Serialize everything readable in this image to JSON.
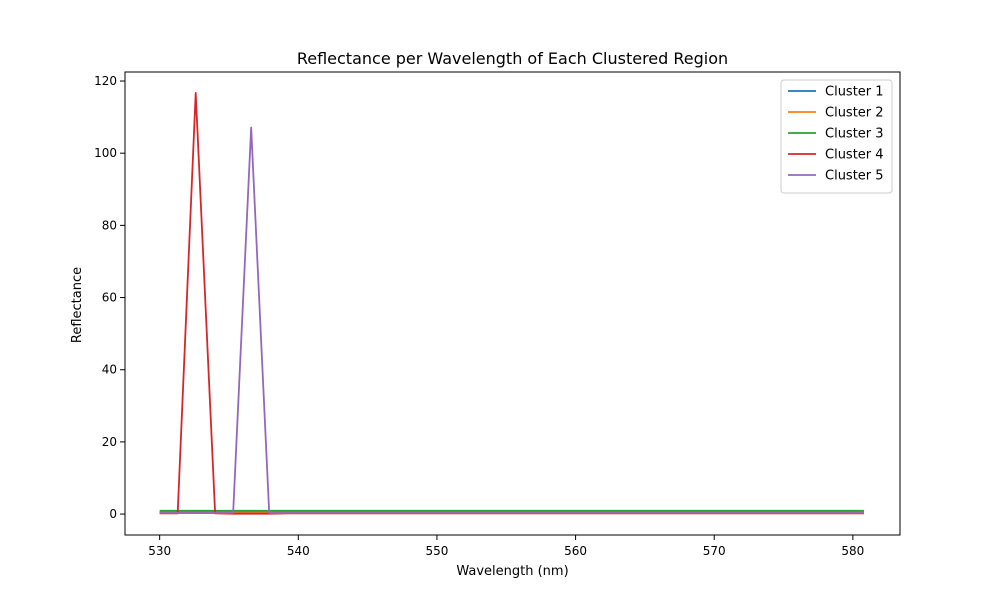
{
  "chart_data": {
    "type": "line",
    "title": "Reflectance per Wavelength of Each Clustered Region",
    "xlabel": "Wavelength (nm)",
    "ylabel": "Reflectance",
    "xlim": [
      527.5,
      583.4
    ],
    "ylim": [
      -5.8,
      122.5
    ],
    "xticks": [
      530,
      540,
      550,
      560,
      570,
      580
    ],
    "yticks": [
      0,
      20,
      40,
      60,
      80,
      100,
      120
    ],
    "grid": false,
    "legend_position": "top-right",
    "series": [
      {
        "name": "Cluster 1",
        "color": "#1f77b4",
        "points": [
          [
            530,
            0.3
          ],
          [
            580.8,
            0.3
          ]
        ]
      },
      {
        "name": "Cluster 2",
        "color": "#ff7f0e",
        "points": [
          [
            530,
            0.6
          ],
          [
            580.8,
            0.6
          ]
        ]
      },
      {
        "name": "Cluster 3",
        "color": "#2ca02c",
        "points": [
          [
            530,
            0.9
          ],
          [
            580.8,
            0.9
          ]
        ]
      },
      {
        "name": "Cluster 4",
        "color": "#d62728",
        "points": [
          [
            530,
            0.2
          ],
          [
            531.3,
            0.2
          ],
          [
            532.6,
            116.7
          ],
          [
            534.0,
            0.2
          ],
          [
            535.3,
            0.1
          ],
          [
            537.9,
            0.1
          ],
          [
            539.3,
            0.2
          ],
          [
            580.8,
            0.2
          ]
        ]
      },
      {
        "name": "Cluster 5",
        "color": "#9467bd",
        "points": [
          [
            530,
            0.3
          ],
          [
            535.3,
            0.3
          ],
          [
            536.6,
            107.1
          ],
          [
            537.9,
            0.3
          ],
          [
            580.8,
            0.3
          ]
        ]
      }
    ]
  }
}
